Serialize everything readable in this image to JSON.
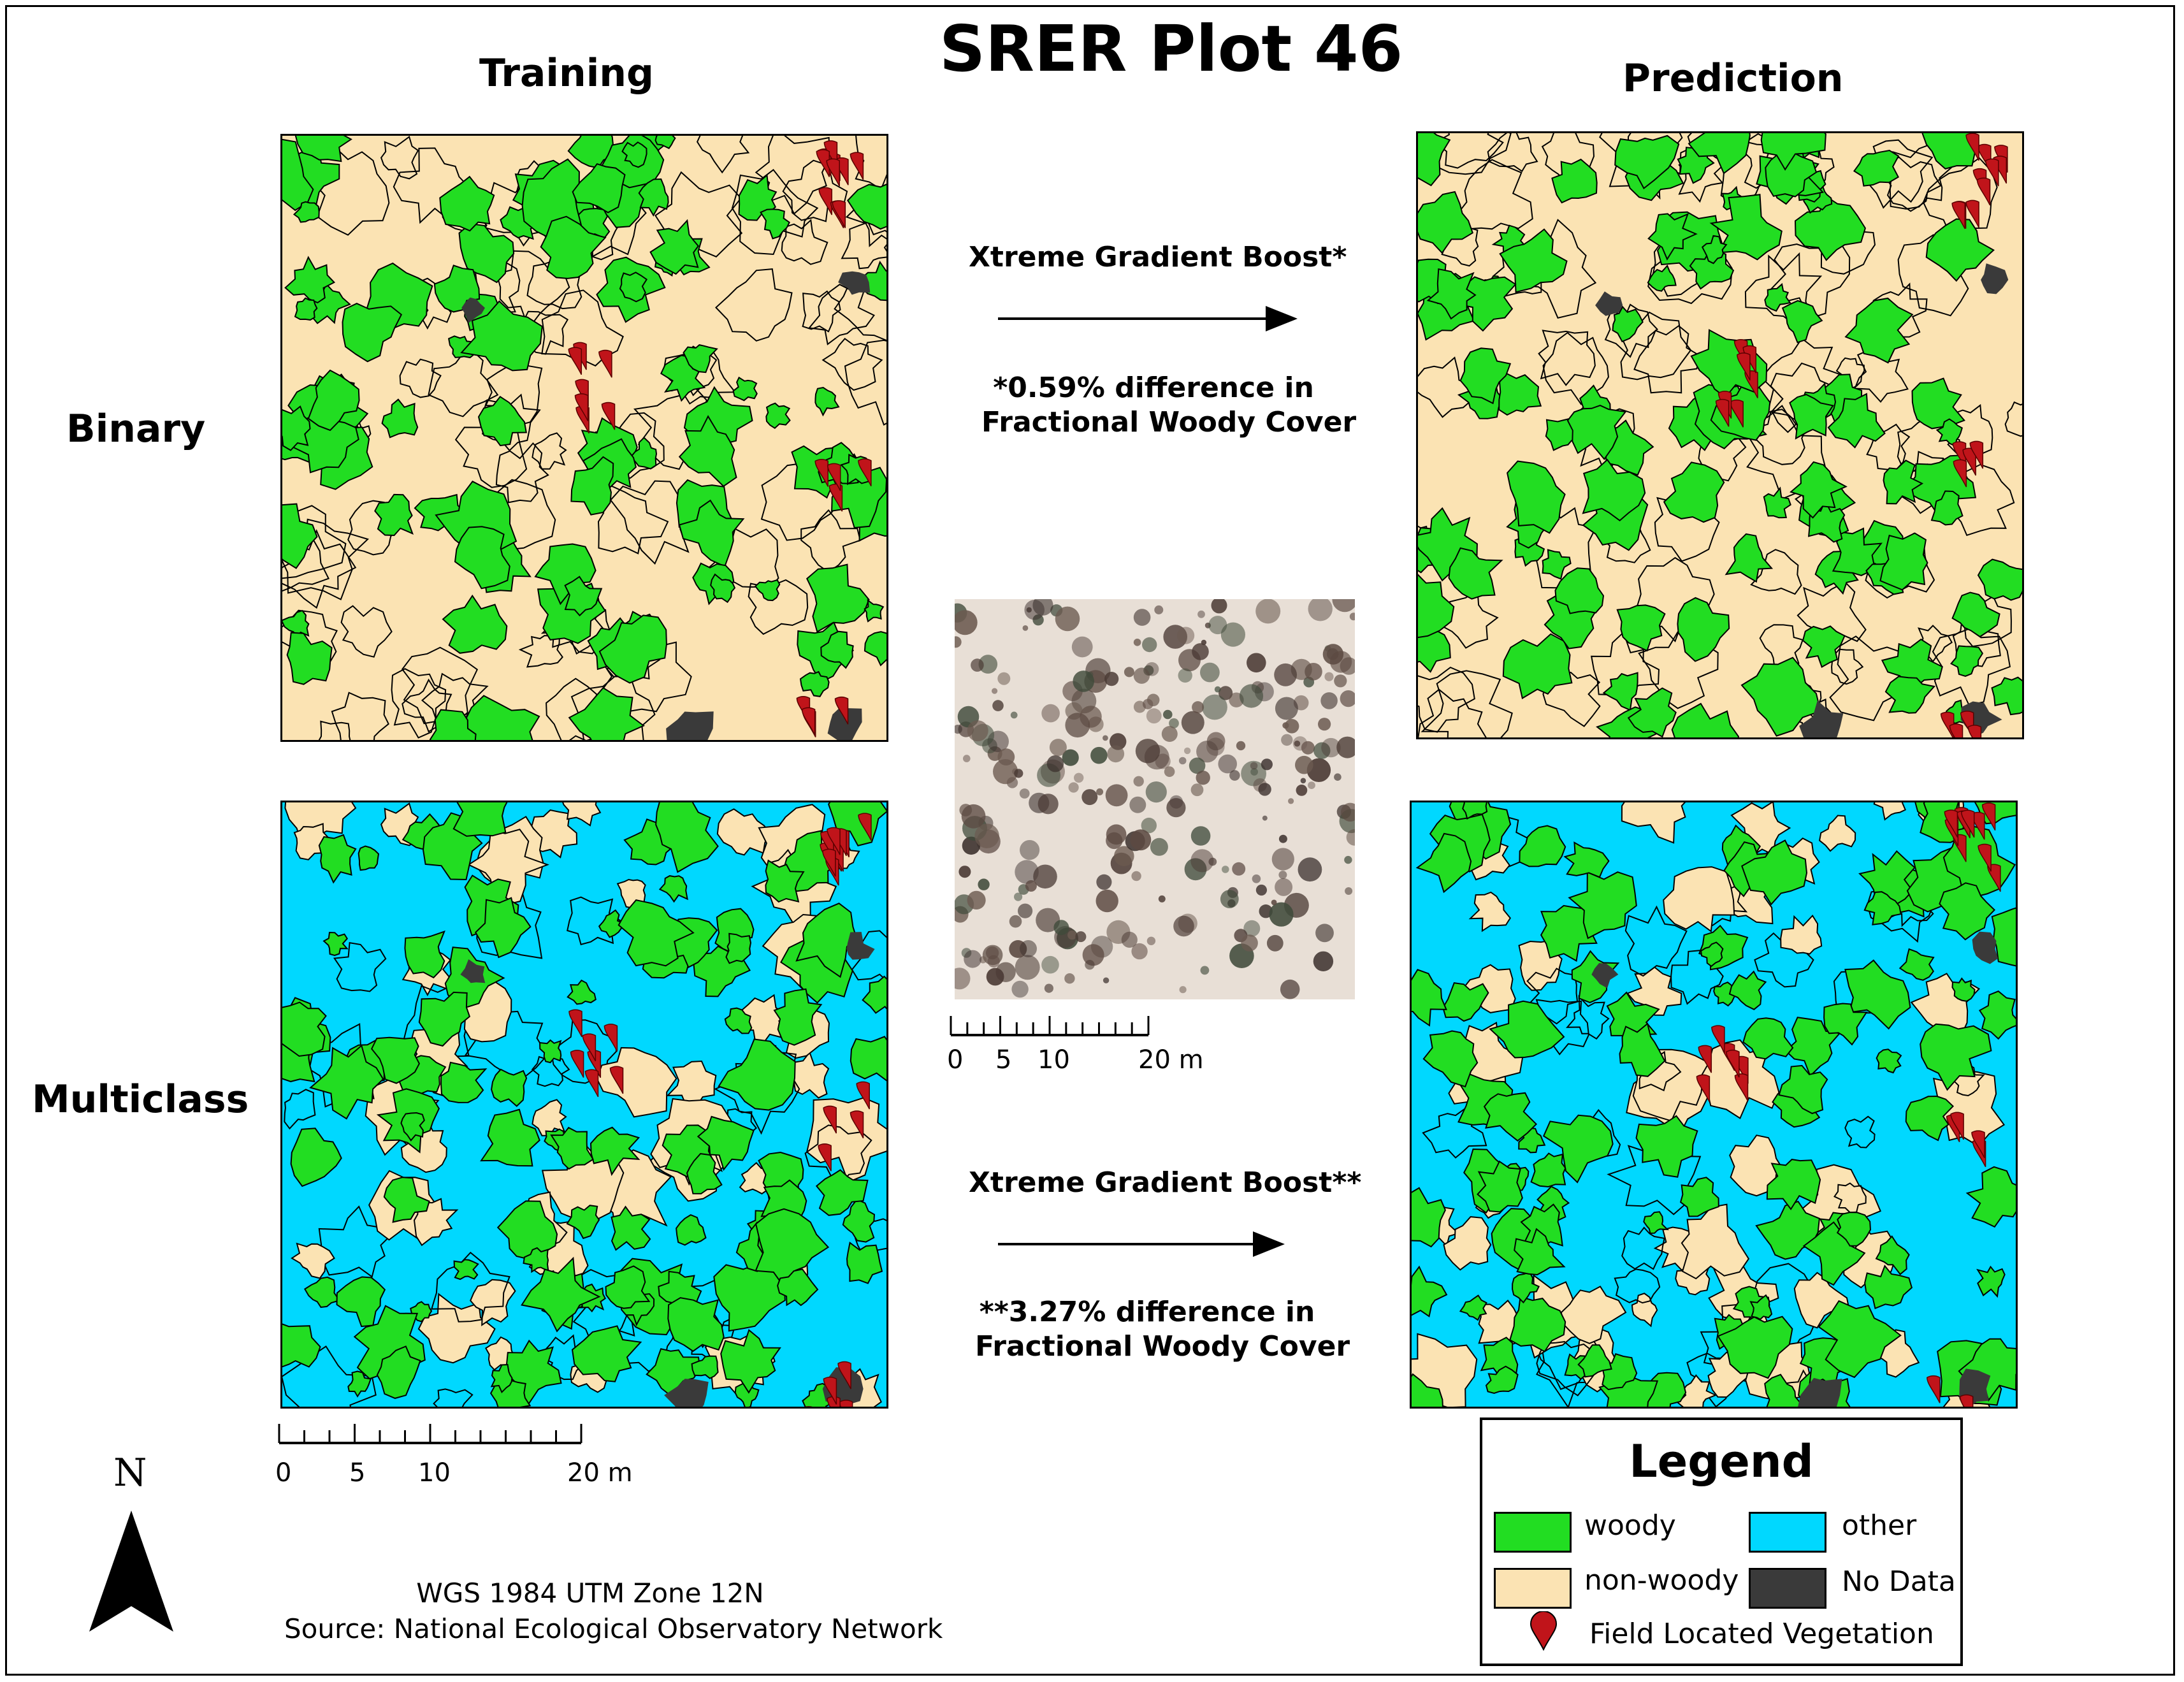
{
  "title": "SRER Plot 46",
  "columns": {
    "training": "Training",
    "prediction": "Prediction"
  },
  "rows": {
    "binary": "Binary",
    "multiclass": "Multiclass"
  },
  "binary_model": {
    "method": "Xtreme Gradient Boost*",
    "difference_line1": "*0.59% difference in",
    "difference_line2": "Fractional Woody Cover"
  },
  "multiclass_model": {
    "method": "Xtreme Gradient Boost**",
    "difference_line1": "**3.27% difference in",
    "difference_line2": "Fractional Woody Cover"
  },
  "scalebar": {
    "labels": [
      "0",
      "5",
      "10",
      "20 m"
    ]
  },
  "north_label": "N",
  "credits": {
    "projection": "WGS 1984 UTM Zone 12N",
    "source": "Source: National Ecological Observatory Network"
  },
  "legend": {
    "title": "Legend",
    "items": {
      "woody": "woody",
      "non_woody": "non-woody",
      "other": "other",
      "no_data": "No Data",
      "field": "Field Located Vegetation"
    }
  },
  "colors": {
    "woody": "#22dd22",
    "non_woody": "#fbe3b3",
    "other": "#00d8ff",
    "no_data": "#3a3a3a",
    "marker": "#c0141a",
    "outline": "#000000"
  }
}
